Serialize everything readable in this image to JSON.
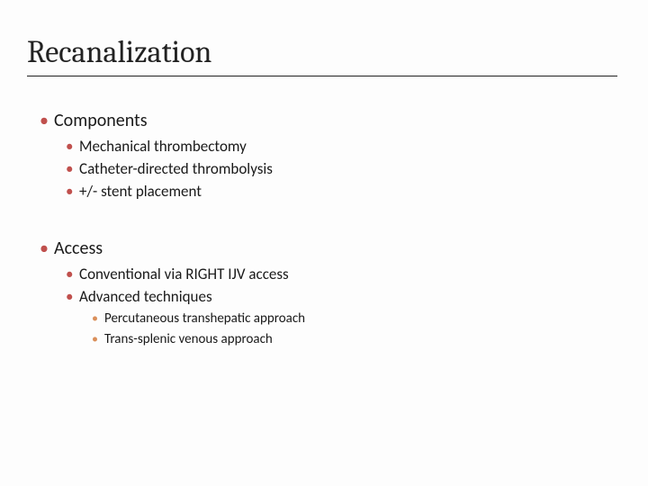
{
  "slide": {
    "title": "Recanalization",
    "title_fontsize": 34,
    "title_fontfamily": "Cambria, serif",
    "title_color": "#222222",
    "title_underline_color": "#222222",
    "background_color": "#fdfdfd",
    "body_fontfamily": "Calibri, sans-serif",
    "bullet_colors": {
      "level1": "#c0504d",
      "level2": "#c0504d",
      "level3": "#da8f5a"
    },
    "fontsizes": {
      "level1": 20,
      "level2": 17,
      "level3": 15
    }
  },
  "sections": {
    "components": {
      "heading": "Components",
      "items": {
        "a": "Mechanical thrombectomy",
        "b": "Catheter-directed thrombolysis",
        "c": "+/- stent placement"
      }
    },
    "access": {
      "heading": "Access",
      "items": {
        "a": "Conventional via RIGHT IJV access",
        "b": "Advanced techniques"
      },
      "advanced_sub": {
        "a": "Percutaneous transhepatic approach",
        "b": "Trans-splenic venous approach"
      }
    }
  }
}
